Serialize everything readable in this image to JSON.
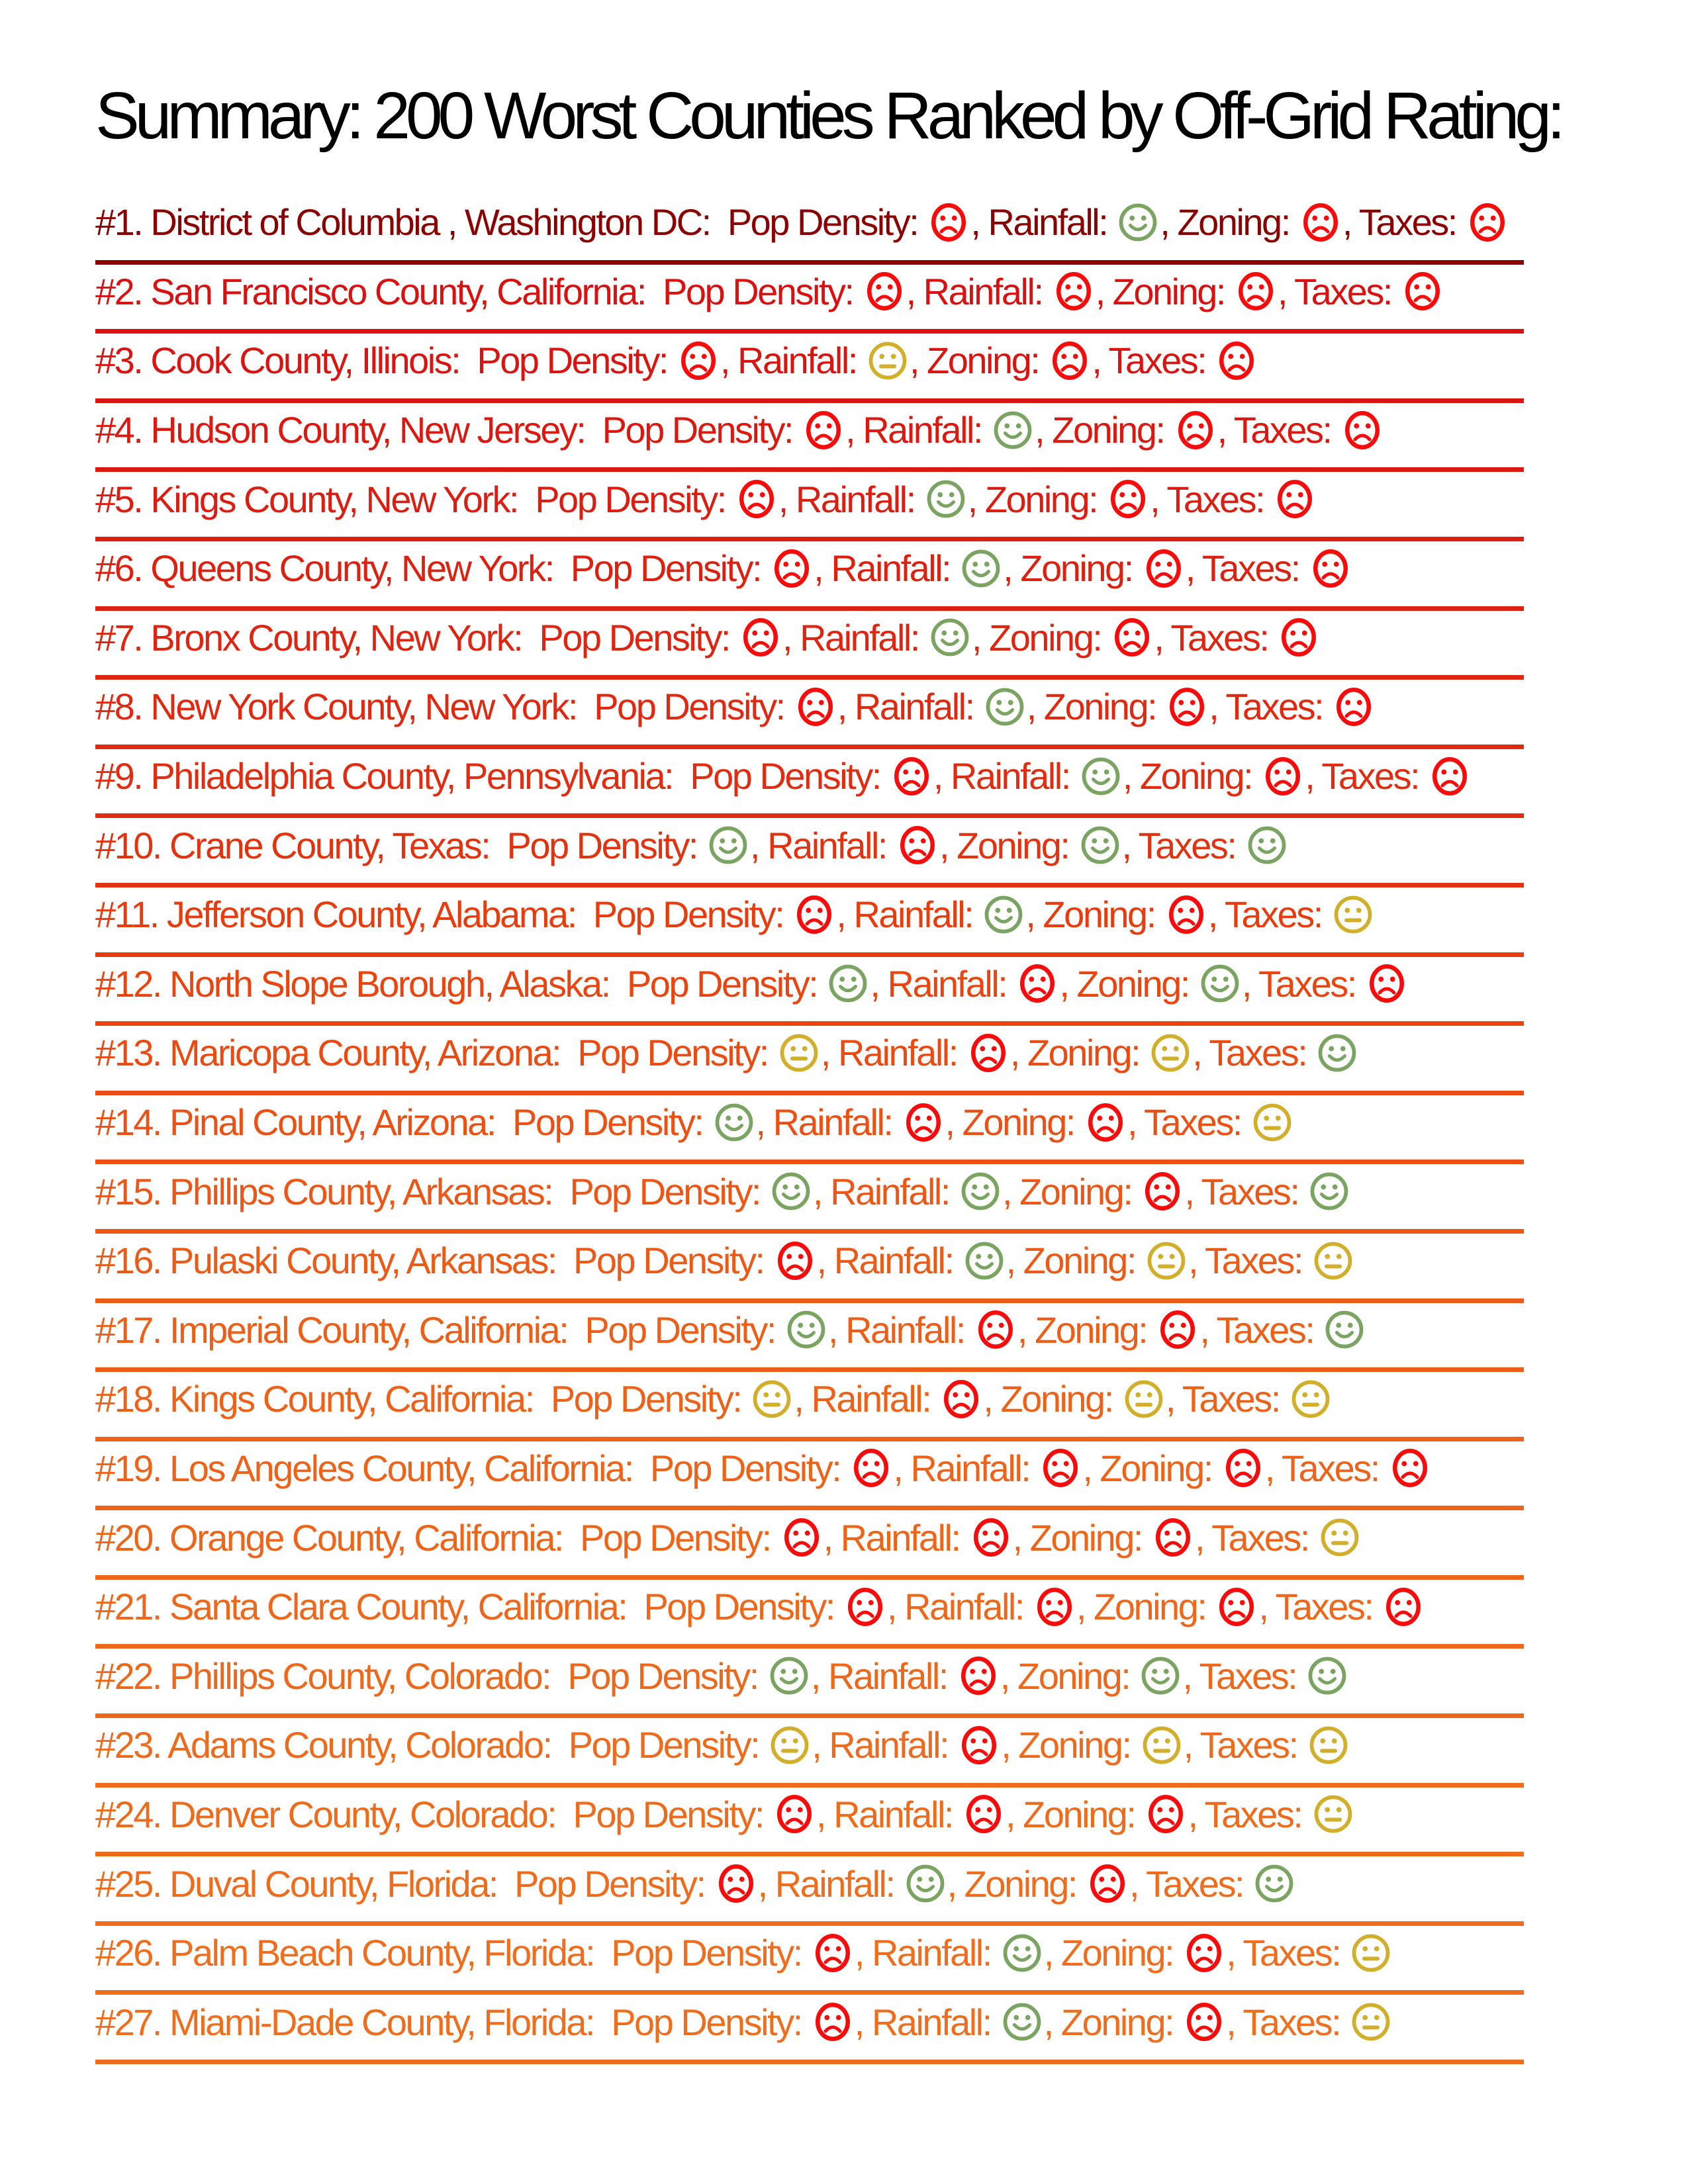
{
  "title": "Summary: 200 Worst Counties Ranked by Off-Grid Rating:",
  "metrics": [
    "Pop Density",
    "Rainfall",
    "Zoning",
    "Taxes"
  ],
  "rating_colors": {
    "bad": "#F80B0B",
    "good": "#7BA463",
    "neutral": "#D1AF2B"
  },
  "rows": [
    {
      "rank": 1,
      "name": "District of Columbia , Washington DC",
      "color": "#8B0000",
      "ratings": [
        "bad",
        "good",
        "bad",
        "bad"
      ]
    },
    {
      "rank": 2,
      "name": "San Francisco County, California",
      "color": "#D91111",
      "ratings": [
        "bad",
        "bad",
        "bad",
        "bad"
      ]
    },
    {
      "rank": 3,
      "name": "Cook County, Illinois",
      "color": "#DA1511",
      "ratings": [
        "bad",
        "neutral",
        "bad",
        "bad"
      ]
    },
    {
      "rank": 4,
      "name": "Hudson County, New Jersey",
      "color": "#DB1911",
      "ratings": [
        "bad",
        "good",
        "bad",
        "bad"
      ]
    },
    {
      "rank": 5,
      "name": "Kings County, New York",
      "color": "#DC1D11",
      "ratings": [
        "bad",
        "good",
        "bad",
        "bad"
      ]
    },
    {
      "rank": 6,
      "name": "Queens County, New York",
      "color": "#DD2111",
      "ratings": [
        "bad",
        "good",
        "bad",
        "bad"
      ]
    },
    {
      "rank": 7,
      "name": "Bronx County, New York",
      "color": "#DE2511",
      "ratings": [
        "bad",
        "good",
        "bad",
        "bad"
      ]
    },
    {
      "rank": 8,
      "name": "New York County, New York",
      "color": "#DF2911",
      "ratings": [
        "bad",
        "good",
        "bad",
        "bad"
      ]
    },
    {
      "rank": 9,
      "name": "Philadelphia County, Pennsylvania",
      "color": "#E02D11",
      "ratings": [
        "bad",
        "good",
        "bad",
        "bad"
      ]
    },
    {
      "rank": 10,
      "name": "Crane County, Texas",
      "color": "#E23311",
      "ratings": [
        "good",
        "bad",
        "good",
        "good"
      ]
    },
    {
      "rank": 11,
      "name": "Jefferson County, Alabama",
      "color": "#E83C0E",
      "ratings": [
        "bad",
        "good",
        "bad",
        "neutral"
      ]
    },
    {
      "rank": 12,
      "name": "North Slope Borough, Alaska",
      "color": "#EA440F",
      "ratings": [
        "good",
        "bad",
        "good",
        "bad"
      ]
    },
    {
      "rank": 13,
      "name": "Maricopa County, Arizona",
      "color": "#EB4B12",
      "ratings": [
        "neutral",
        "bad",
        "neutral",
        "good"
      ]
    },
    {
      "rank": 14,
      "name": "Pinal County, Arizona",
      "color": "#EB5114",
      "ratings": [
        "good",
        "bad",
        "bad",
        "neutral"
      ]
    },
    {
      "rank": 15,
      "name": "Phillips County, Arkansas",
      "color": "#EC5616",
      "ratings": [
        "good",
        "good",
        "bad",
        "good"
      ]
    },
    {
      "rank": 16,
      "name": "Pulaski County, Arkansas",
      "color": "#EC5A17",
      "ratings": [
        "bad",
        "good",
        "neutral",
        "neutral"
      ]
    },
    {
      "rank": 17,
      "name": "Imperial County, California",
      "color": "#ED5E18",
      "ratings": [
        "good",
        "bad",
        "bad",
        "good"
      ]
    },
    {
      "rank": 18,
      "name": "Kings County, California",
      "color": "#ED6119",
      "ratings": [
        "neutral",
        "bad",
        "neutral",
        "neutral"
      ]
    },
    {
      "rank": 19,
      "name": "Los Angeles County, California",
      "color": "#ED631A",
      "ratings": [
        "bad",
        "bad",
        "bad",
        "bad"
      ]
    },
    {
      "rank": 20,
      "name": "Orange County, California",
      "color": "#EE651A",
      "ratings": [
        "bad",
        "bad",
        "bad",
        "neutral"
      ]
    },
    {
      "rank": 21,
      "name": "Santa Clara County, California",
      "color": "#EE671B",
      "ratings": [
        "bad",
        "bad",
        "bad",
        "bad"
      ]
    },
    {
      "rank": 22,
      "name": "Phillips County, Colorado",
      "color": "#EE681B",
      "ratings": [
        "good",
        "bad",
        "good",
        "good"
      ]
    },
    {
      "rank": 23,
      "name": "Adams County, Colorado",
      "color": "#EE6A1C",
      "ratings": [
        "neutral",
        "bad",
        "neutral",
        "neutral"
      ]
    },
    {
      "rank": 24,
      "name": "Denver County, Colorado",
      "color": "#EF6B1C",
      "ratings": [
        "bad",
        "bad",
        "bad",
        "neutral"
      ]
    },
    {
      "rank": 25,
      "name": "Duval County, Florida",
      "color": "#EF6C1C",
      "ratings": [
        "bad",
        "good",
        "bad",
        "good"
      ]
    },
    {
      "rank": 26,
      "name": "Palm Beach County, Florida",
      "color": "#EF6D1D",
      "ratings": [
        "bad",
        "good",
        "bad",
        "neutral"
      ]
    },
    {
      "rank": 27,
      "name": "Miami-Dade County, Florida",
      "color": "#EF6E1D",
      "ratings": [
        "bad",
        "good",
        "bad",
        "neutral"
      ]
    }
  ]
}
